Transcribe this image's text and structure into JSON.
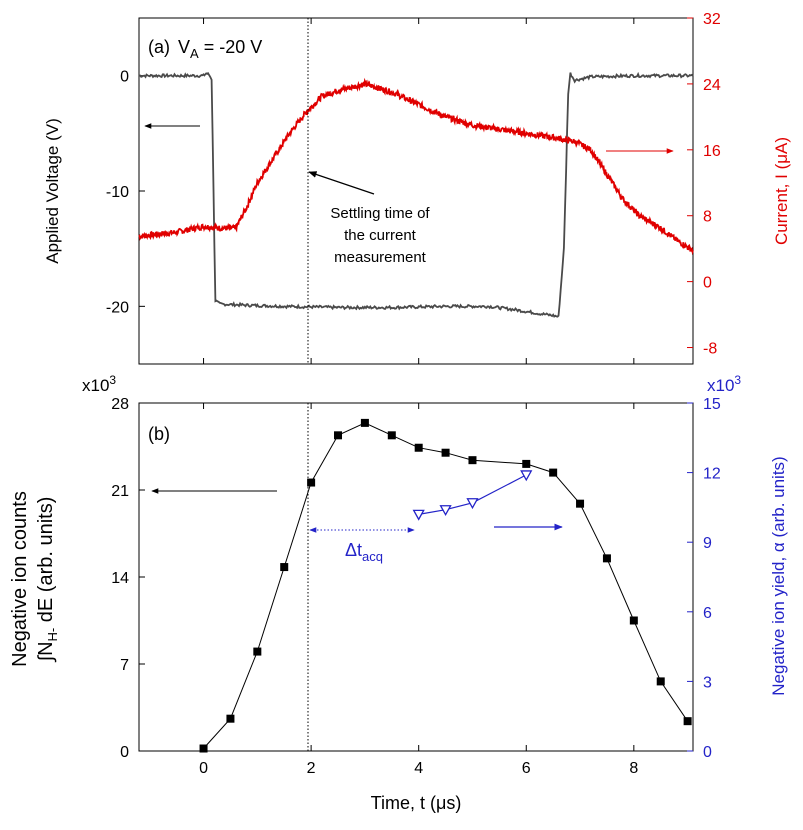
{
  "colors": {
    "voltage": "#4a4a4a",
    "current": "#e00000",
    "axis_right_a": "#e00000",
    "axis_right_b": "#2323c8",
    "counts": "#000000",
    "yield": "#2323c8",
    "guide": "#000000"
  },
  "panel_a": {
    "label": "(a)",
    "va_label": "V",
    "va_sub": "A",
    "va_value": " = -20 V",
    "annotation": [
      "Settling time of",
      "the current",
      "measurement"
    ]
  },
  "panel_b": {
    "label": "(b)",
    "dt_label": "Δt",
    "dt_sub": "acq"
  },
  "axes_text": {
    "a_ylabel": "Applied Voltage (V)",
    "a_ylabel_right": "Current, I (μA)",
    "b_ylabel_line1": "Negative ion counts",
    "b_ylabel_line2_pre": "∫N",
    "b_ylabel_line2_sub": "H-",
    "b_ylabel_line2_post": " dE (arb. units)",
    "b_ylabel_right": "Negative ion yield, α (arb. units)",
    "xlabel": "Time, t  (μs)",
    "x103": "x10",
    "x103_exp": "3"
  },
  "chart_data": [
    {
      "type": "line",
      "panel": "a",
      "xlim": [
        -1.2,
        9.1
      ],
      "ylim_left": [
        -25,
        5
      ],
      "ylim_right": [
        -10,
        32
      ],
      "xticks": [
        0,
        2,
        4,
        6,
        8
      ],
      "yticks_left": [
        0,
        -10,
        -20
      ],
      "yticks_right": [
        -8,
        0,
        8,
        16,
        24,
        32
      ],
      "grid": false,
      "series": [
        {
          "axis": "left",
          "points": [
            [
              -1.2,
              0
            ],
            [
              0.0,
              0
            ],
            [
              0.05,
              0.2
            ],
            [
              0.1,
              0.1
            ],
            [
              0.15,
              -0.3
            ],
            [
              0.22,
              -19.5
            ],
            [
              0.3,
              -19.8
            ],
            [
              0.8,
              -19.9
            ],
            [
              1.5,
              -20.0
            ],
            [
              2.5,
              -20.1
            ],
            [
              3.5,
              -20.1
            ],
            [
              4.5,
              -20.0
            ],
            [
              5.3,
              -20.0
            ],
            [
              5.8,
              -20.3
            ],
            [
              6.2,
              -20.6
            ],
            [
              6.5,
              -20.8
            ],
            [
              6.6,
              -20.9
            ],
            [
              6.7,
              -15.0
            ],
            [
              6.78,
              -1.5
            ],
            [
              6.82,
              0.2
            ],
            [
              6.9,
              -0.4
            ],
            [
              7.2,
              -0.1
            ],
            [
              8.0,
              0
            ],
            [
              9.1,
              0
            ]
          ]
        },
        {
          "axis": "right",
          "points": [
            [
              -1.2,
              5.5
            ],
            [
              -0.5,
              6.0
            ],
            [
              0.0,
              6.7
            ],
            [
              0.3,
              6.5
            ],
            [
              0.6,
              6.5
            ],
            [
              0.8,
              9.0
            ],
            [
              1.0,
              12.0
            ],
            [
              1.3,
              15.0
            ],
            [
              1.6,
              18.0
            ],
            [
              1.9,
              20.5
            ],
            [
              2.2,
              22.5
            ],
            [
              2.5,
              23.2
            ],
            [
              3.0,
              24.0
            ],
            [
              3.5,
              23.0
            ],
            [
              4.0,
              21.5
            ],
            [
              4.5,
              20.0
            ],
            [
              5.0,
              19.0
            ],
            [
              5.5,
              18.5
            ],
            [
              6.0,
              18.0
            ],
            [
              6.5,
              17.5
            ],
            [
              6.9,
              17.0
            ],
            [
              7.2,
              16.0
            ],
            [
              7.5,
              13.0
            ],
            [
              7.8,
              10.0
            ],
            [
              8.1,
              8.0
            ],
            [
              8.5,
              6.5
            ],
            [
              8.8,
              5.0
            ],
            [
              9.1,
              3.8
            ]
          ]
        }
      ]
    },
    {
      "type": "scatter",
      "panel": "b",
      "xlim": [
        -1.2,
        9.1
      ],
      "ylim_left": [
        0,
        28000
      ],
      "ylim_right": [
        0,
        15000
      ],
      "xticks": [
        0,
        2,
        4,
        6,
        8
      ],
      "yticks_left": [
        0,
        7,
        14,
        21,
        28
      ],
      "yticks_right": [
        0,
        3,
        6,
        9,
        12,
        15
      ],
      "grid": false,
      "series": [
        {
          "axis": "left",
          "marker": "filled-square",
          "x": [
            0,
            0.5,
            1,
            1.5,
            2,
            2.5,
            3,
            3.5,
            4,
            4.5,
            5,
            6,
            6.5,
            7,
            7.5,
            8,
            8.5,
            9
          ],
          "y": [
            200,
            2600,
            8000,
            14800,
            21600,
            25400,
            26400,
            25400,
            24400,
            24000,
            23400,
            23100,
            22400,
            19900,
            15500,
            10500,
            5600,
            2400
          ]
        },
        {
          "axis": "right",
          "marker": "open-triangle-down",
          "x": [
            4,
            4.5,
            5,
            6
          ],
          "y": [
            10200,
            10400,
            10700,
            11900
          ]
        }
      ]
    }
  ]
}
